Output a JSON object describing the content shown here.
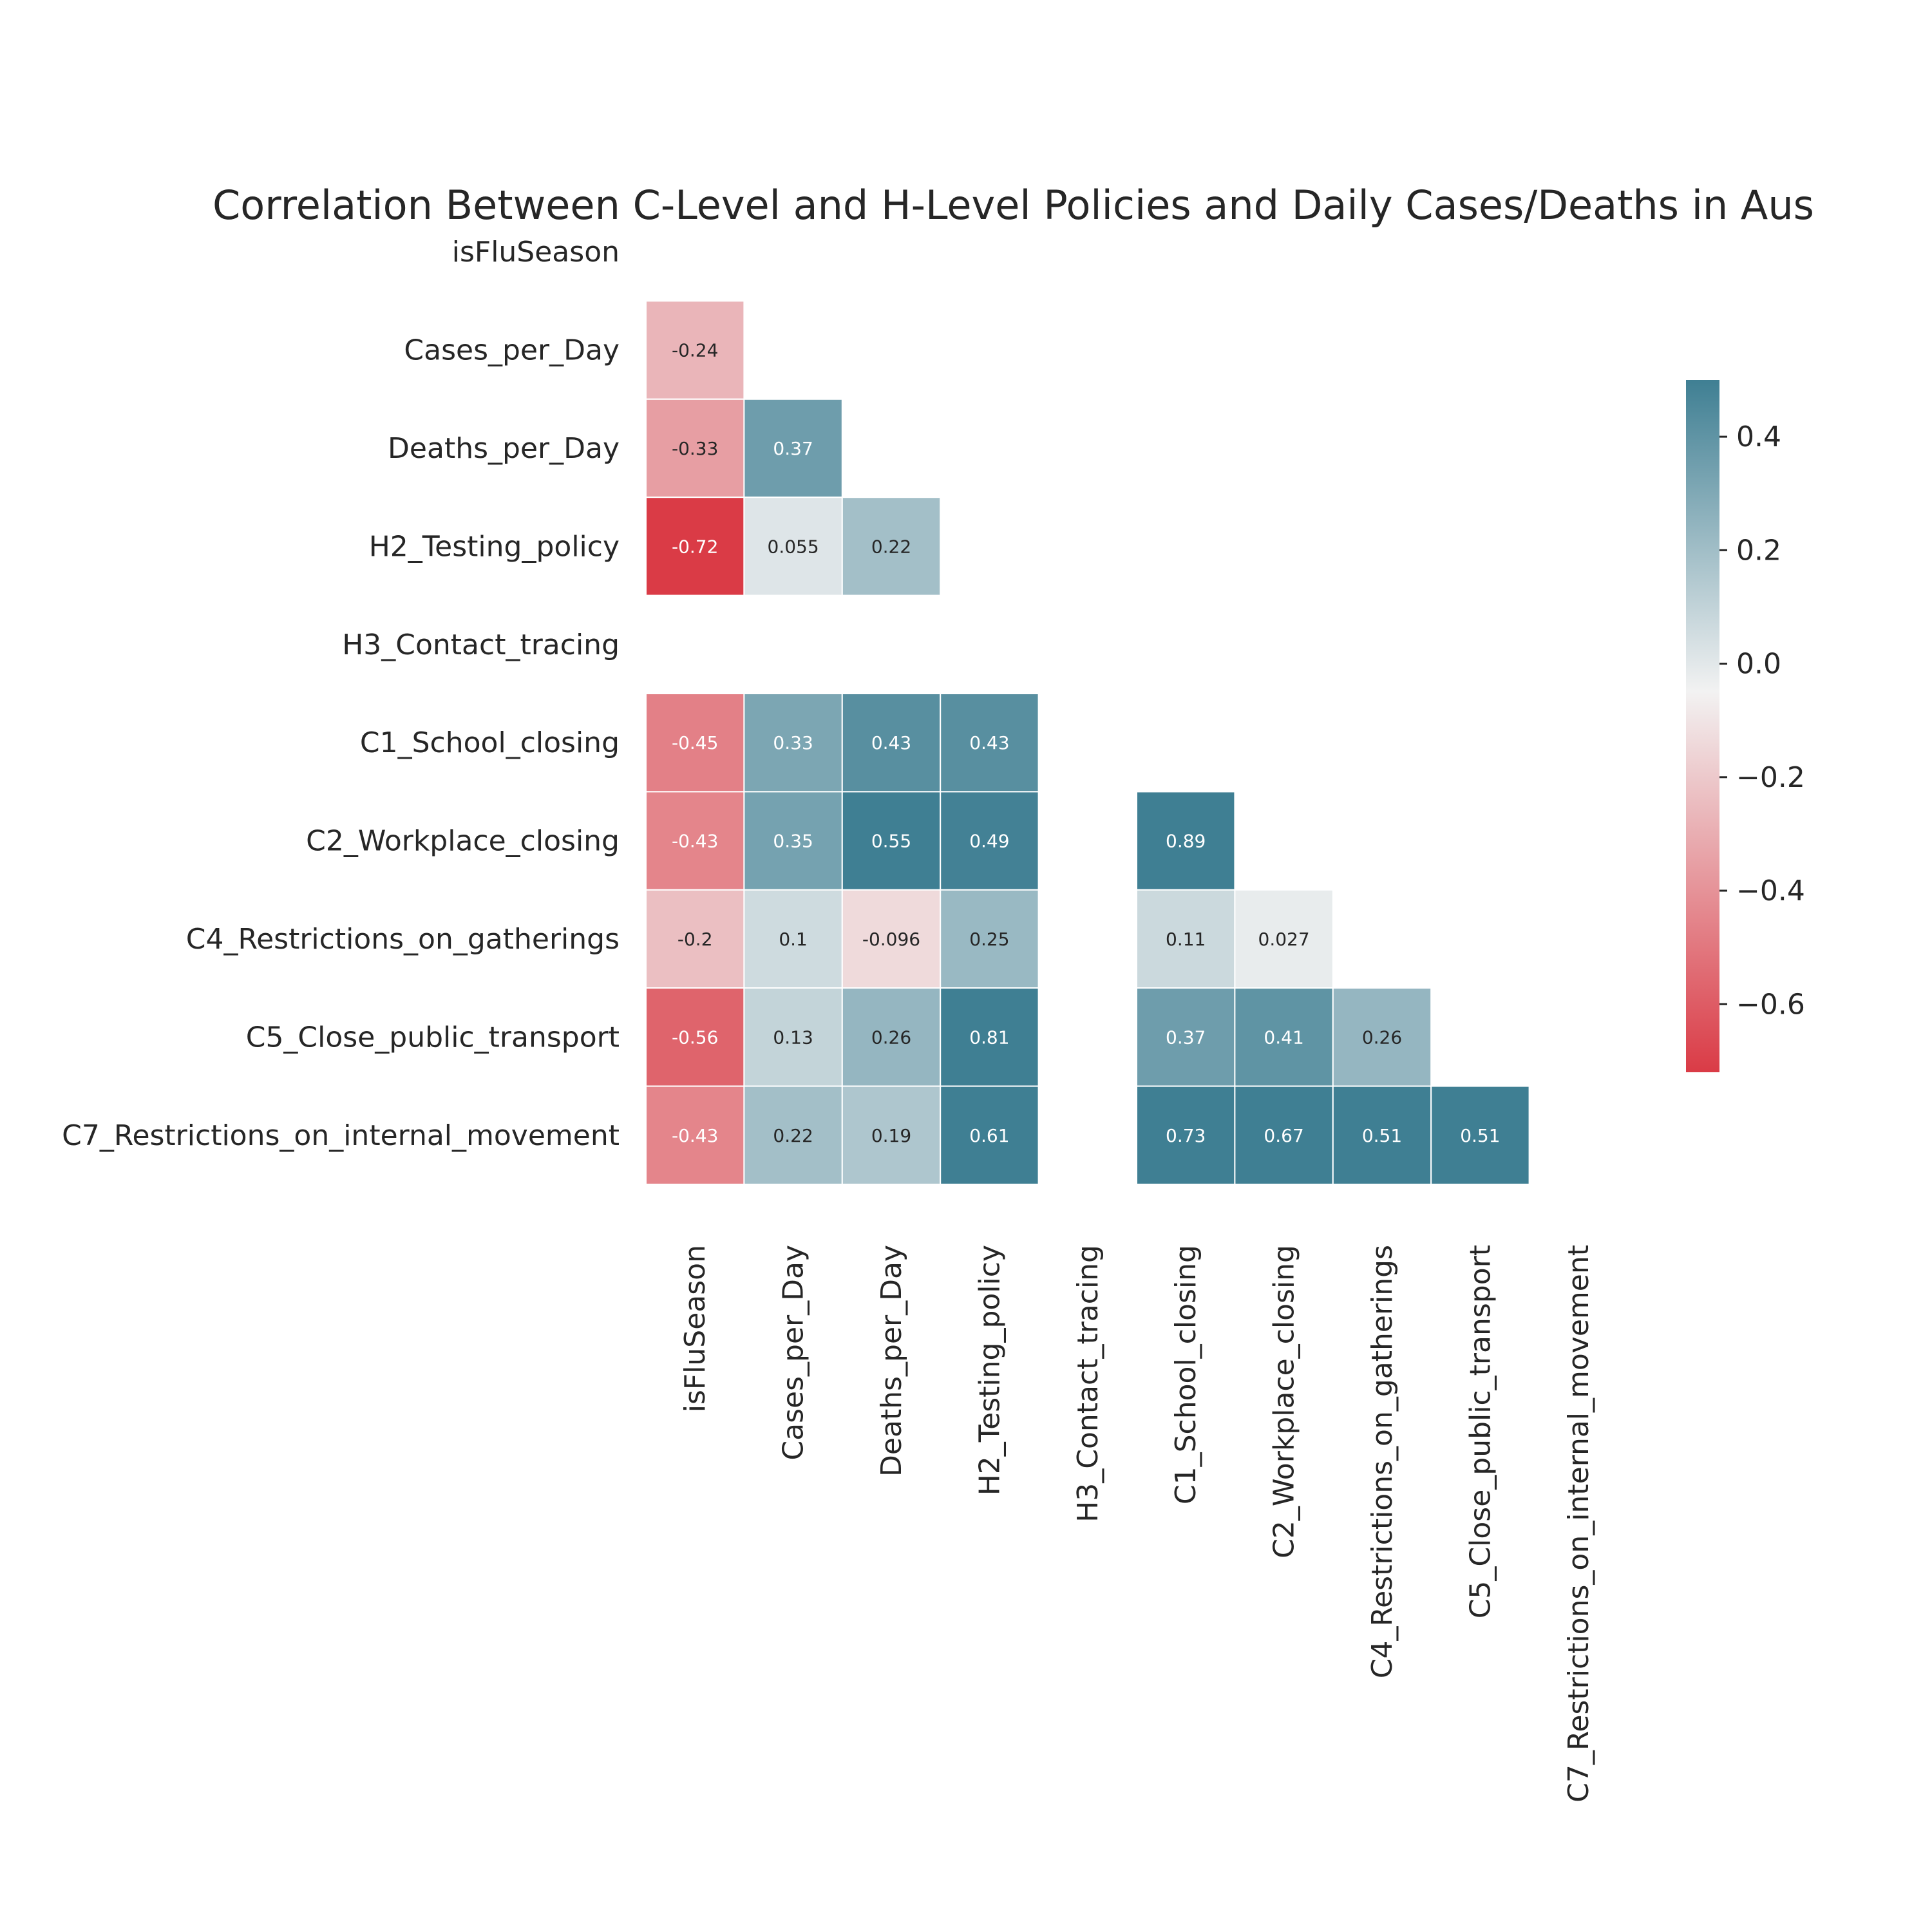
{
  "chart_data": {
    "type": "heatmap",
    "title": "Correlation Between C-Level and H-Level  Policies and Daily Cases/Deaths in Aus",
    "variables": [
      "isFluSeason",
      "Cases_per_Day",
      "Deaths_per_Day",
      "H2_Testing_policy",
      "H3_Contact_tracing",
      "C1_School_closing",
      "C2_Workplace_closing",
      "C4_Restrictions_on_gatherings",
      "C5_Close_public_transport",
      "C7_Restrictions_on_internal_movement"
    ],
    "mask": "upper-triangle-and-diagonal",
    "matrix": [
      [
        null,
        null,
        null,
        null,
        null,
        null,
        null,
        null,
        null,
        null
      ],
      [
        -0.24,
        null,
        null,
        null,
        null,
        null,
        null,
        null,
        null,
        null
      ],
      [
        -0.33,
        0.37,
        null,
        null,
        null,
        null,
        null,
        null,
        null,
        null
      ],
      [
        -0.72,
        0.055,
        0.22,
        null,
        null,
        null,
        null,
        null,
        null,
        null
      ],
      [
        null,
        null,
        null,
        null,
        null,
        null,
        null,
        null,
        null,
        null
      ],
      [
        -0.45,
        0.33,
        0.43,
        0.43,
        null,
        null,
        null,
        null,
        null,
        null
      ],
      [
        -0.43,
        0.35,
        0.55,
        0.49,
        null,
        0.89,
        null,
        null,
        null,
        null
      ],
      [
        -0.2,
        0.1,
        -0.096,
        0.25,
        null,
        0.11,
        0.027,
        null,
        null,
        null
      ],
      [
        -0.56,
        0.13,
        0.26,
        0.81,
        null,
        0.37,
        0.41,
        0.26,
        null,
        null
      ],
      [
        -0.43,
        0.22,
        0.19,
        0.61,
        null,
        0.73,
        0.67,
        0.51,
        0.51,
        null
      ]
    ],
    "annotations": [
      [
        null,
        null,
        null,
        null,
        null,
        null,
        null,
        null,
        null,
        null
      ],
      [
        "-0.24",
        null,
        null,
        null,
        null,
        null,
        null,
        null,
        null,
        null
      ],
      [
        "-0.33",
        "0.37",
        null,
        null,
        null,
        null,
        null,
        null,
        null,
        null
      ],
      [
        "-0.72",
        "0.055",
        "0.22",
        null,
        null,
        null,
        null,
        null,
        null,
        null
      ],
      [
        null,
        null,
        null,
        null,
        null,
        null,
        null,
        null,
        null,
        null
      ],
      [
        "-0.45",
        "0.33",
        "0.43",
        "0.43",
        null,
        null,
        null,
        null,
        null,
        null
      ],
      [
        "-0.43",
        "0.35",
        "0.55",
        "0.49",
        null,
        "0.89",
        null,
        null,
        null,
        null
      ],
      [
        "-0.2",
        "0.1",
        "-0.096",
        "0.25",
        null,
        "0.11",
        "0.027",
        null,
        null,
        null
      ],
      [
        "-0.56",
        "0.13",
        "0.26",
        "0.81",
        null,
        "0.37",
        "0.41",
        "0.26",
        null,
        null
      ],
      [
        "-0.43",
        "0.22",
        "0.19",
        "0.61",
        null,
        "0.73",
        "0.67",
        "0.51",
        "0.51",
        null
      ]
    ],
    "colorbar": {
      "vmin": -0.72,
      "vmax": 0.5,
      "ticks": [
        0.4,
        0.2,
        0.0,
        -0.2,
        -0.4,
        -0.6
      ],
      "tick_labels": [
        "0.4",
        "0.2",
        "0.0",
        "−0.2",
        "−0.4",
        "−0.6"
      ],
      "placement": "right"
    },
    "colors": {
      "negative": "#da3b46",
      "neutral": "#f2f2f2",
      "positive": "#3f7f93"
    },
    "grid": false
  }
}
